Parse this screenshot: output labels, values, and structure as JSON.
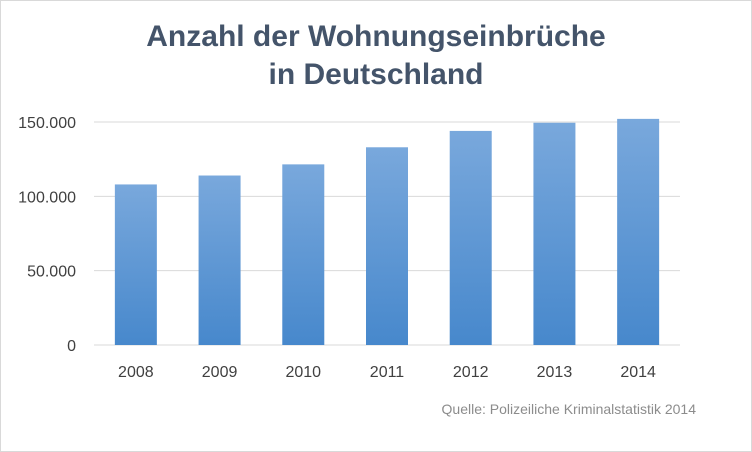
{
  "colors": {
    "bar_top": "#79a8dc",
    "bar_bottom": "#4788cc",
    "grid": "#d9d9d9",
    "title": "#44546a",
    "tick": "#404040",
    "source": "#8c8c8c"
  },
  "chart_data": {
    "type": "bar",
    "title_lines": [
      "Anzahl der Wohnungseinbrüche",
      "in Deutschland"
    ],
    "categories": [
      "2008",
      "2009",
      "2010",
      "2011",
      "2012",
      "2013",
      "2014"
    ],
    "values": [
      108000,
      114000,
      121500,
      133000,
      144000,
      149500,
      152100
    ],
    "ylim": [
      0,
      150000
    ],
    "yticks": [
      0,
      50000,
      100000,
      150000
    ],
    "ytick_labels": [
      "0",
      "50.000",
      "100.000",
      "150.000"
    ],
    "grid": true,
    "legend": "none",
    "source": "Quelle: Polizeiliche Kriminalstatistik 2014"
  }
}
